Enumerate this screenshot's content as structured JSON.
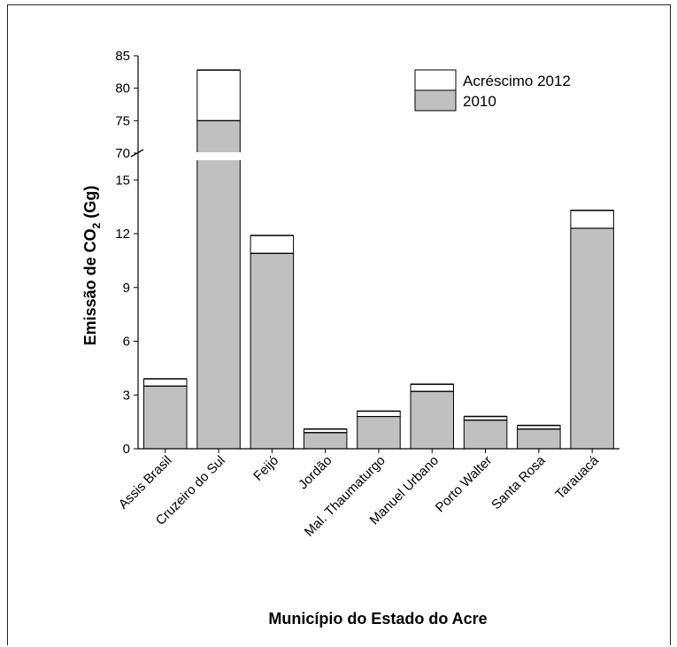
{
  "chart_data": {
    "type": "bar",
    "stacked": true,
    "broken_y_axis": true,
    "xlabel": "Município do Estado do Acre",
    "ylabel_prefix": "Emissão de CO",
    "ylabel_sub": "2",
    "ylabel_suffix": " (Gg)",
    "categories": [
      "Assis Brasil",
      "Cruzeiro do Sul",
      "Feijó",
      "Jordão",
      "Mal. Thaumaturgo",
      "Manuel Urbano",
      "Porto Walter",
      "Santa Rosa",
      "Tarauacá"
    ],
    "series": [
      {
        "name": "2010",
        "values": [
          3.5,
          75.0,
          10.9,
          0.9,
          1.8,
          3.2,
          1.6,
          1.1,
          12.3
        ],
        "color": "#c0c0c0"
      },
      {
        "name": "Acréscimo 2012",
        "values": [
          0.4,
          7.8,
          1.0,
          0.2,
          0.3,
          0.4,
          0.2,
          0.2,
          1.0
        ],
        "color": "#ffffff"
      }
    ],
    "lower_axis": {
      "ylim": [
        0,
        16
      ],
      "ticks": [
        0,
        3,
        6,
        9,
        12,
        15
      ]
    },
    "upper_axis": {
      "ylim": [
        70,
        85
      ],
      "ticks": [
        70,
        75,
        80,
        85
      ]
    },
    "legend_position": "top-right"
  }
}
